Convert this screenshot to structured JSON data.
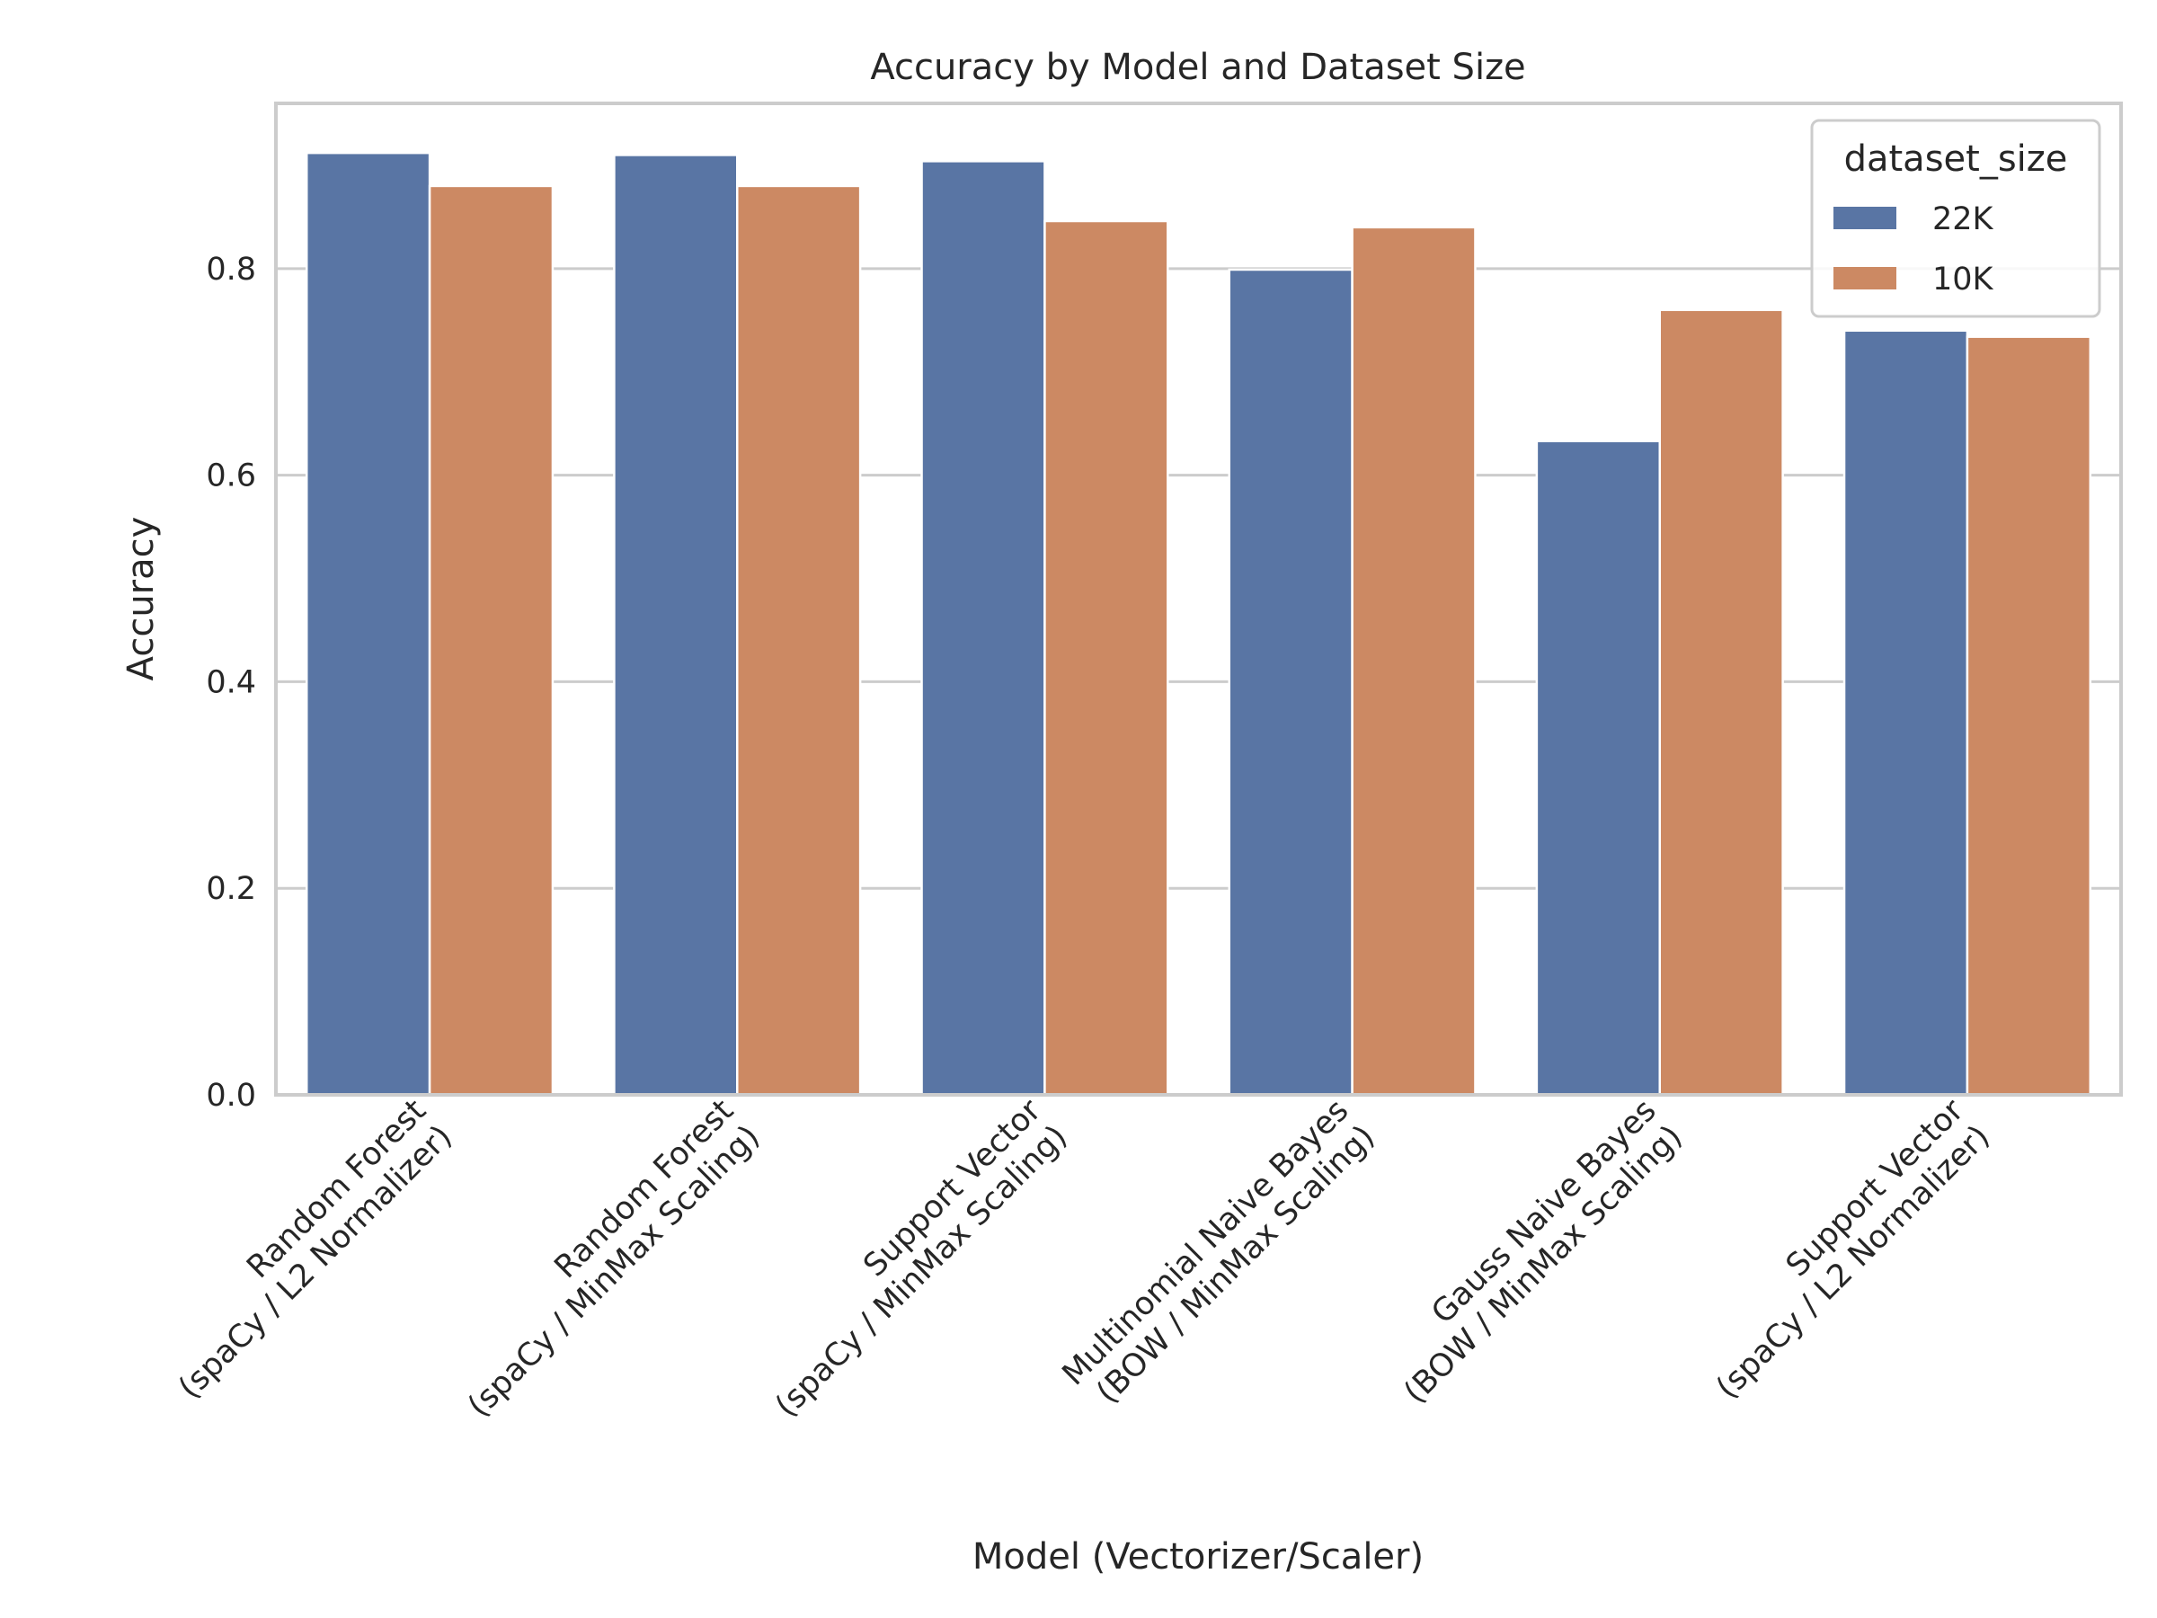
{
  "chart_data": {
    "type": "bar",
    "title": "Accuracy by Model and Dataset Size",
    "xlabel": "Model (Vectorizer/Scaler)",
    "ylabel": "Accuracy",
    "ylim": [
      0,
      0.96
    ],
    "yticks": [
      "0.0",
      "0.2",
      "0.4",
      "0.6",
      "0.8"
    ],
    "ytick_values": [
      0,
      0.2,
      0.4,
      0.6,
      0.8
    ],
    "grid": true,
    "legend": {
      "title": "dataset_size",
      "placement": "top-right"
    },
    "categories": [
      [
        "Random Forest",
        "(spaCy / L2 Normalizer)"
      ],
      [
        "Random Forest",
        "(spaCy / MinMax Scaling)"
      ],
      [
        "Support Vector",
        "(spaCy / MinMax Scaling)"
      ],
      [
        "Multinomial Naive Bayes",
        "(BOW / MinMax Scaling)"
      ],
      [
        "Gauss Naive Bayes",
        "(BOW / MinMax Scaling)"
      ],
      [
        "Support Vector",
        "(spaCy / L2 Normalizer)"
      ]
    ],
    "series": [
      {
        "name": "22K",
        "color": "#5975a4",
        "values": [
          0.912,
          0.91,
          0.904,
          0.799,
          0.633,
          0.74
        ]
      },
      {
        "name": "10K",
        "color": "#cc8963",
        "values": [
          0.88,
          0.88,
          0.846,
          0.84,
          0.76,
          0.734
        ]
      }
    ]
  }
}
